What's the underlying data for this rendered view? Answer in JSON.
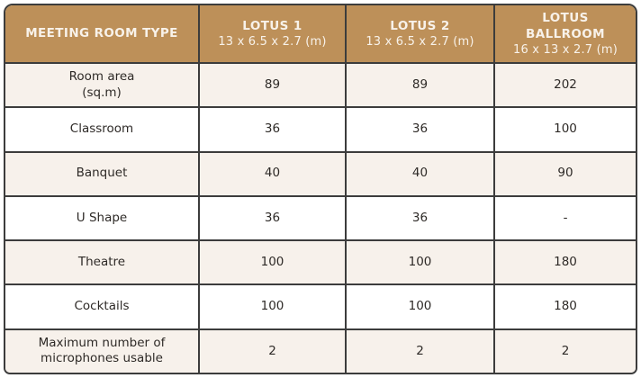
{
  "table": {
    "header": [
      {
        "title": "MEETING ROOM TYPE",
        "dims": ""
      },
      {
        "title": "LOTUS 1",
        "dims": "13 x 6.5 x 2.7 (m)"
      },
      {
        "title": "LOTUS 2",
        "dims": "13 x 6.5 x 2.7 (m)"
      },
      {
        "title": "LOTUS BALLROOM",
        "dims": "16 x 13 x 2.7 (m)"
      }
    ],
    "rows": [
      {
        "label": "Room area\n(sq.m)",
        "values": [
          "89",
          "89",
          "202"
        ]
      },
      {
        "label": "Classroom",
        "values": [
          "36",
          "36",
          "100"
        ]
      },
      {
        "label": "Banquet",
        "values": [
          "40",
          "40",
          "90"
        ]
      },
      {
        "label": "U Shape",
        "values": [
          "36",
          "36",
          "-"
        ]
      },
      {
        "label": "Theatre",
        "values": [
          "100",
          "100",
          "180"
        ]
      },
      {
        "label": "Cocktails",
        "values": [
          "100",
          "100",
          "180"
        ]
      },
      {
        "label": "Maximum number of\nmicrophones usable",
        "values": [
          "2",
          "2",
          "2"
        ]
      }
    ]
  },
  "colors": {
    "header_bg": "#bd9059",
    "header_text": "#f8f2ea",
    "row_alt_bg": "#f7f1eb",
    "row_bg": "#ffffff",
    "border": "#3c3c3c",
    "body_text": "#2e2a27"
  }
}
